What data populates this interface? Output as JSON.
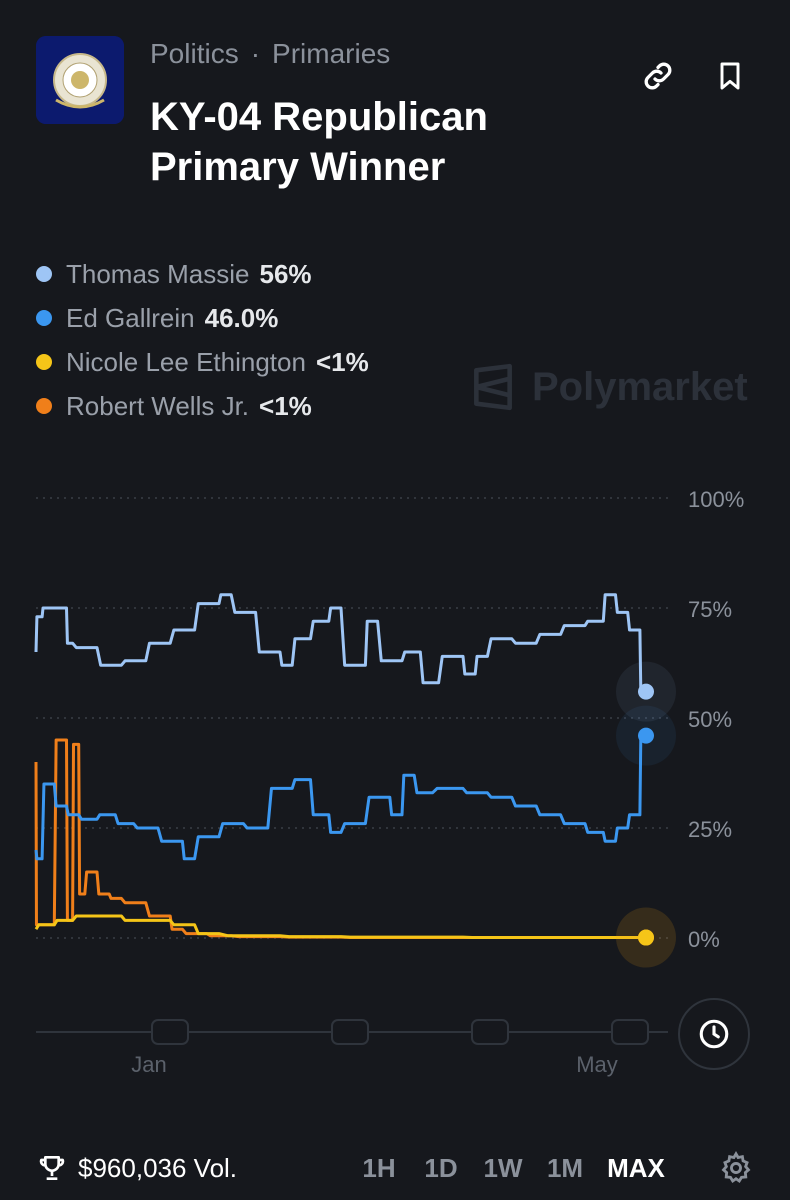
{
  "header": {
    "breadcrumbs": [
      "Politics",
      "Primaries"
    ],
    "separator": "·",
    "title": "KY-04 Republican Primary Winner"
  },
  "legend": [
    {
      "name": "Thomas Massie",
      "value": "56%",
      "color": "#9ec5f5"
    },
    {
      "name": "Ed Gallrein",
      "value": "46.0%",
      "color": "#3b97f0"
    },
    {
      "name": "Nicole Lee Ethington",
      "value": "<1%",
      "color": "#f5c518"
    },
    {
      "name": "Robert Wells Jr.",
      "value": "<1%",
      "color": "#f07f1a"
    }
  ],
  "watermark": "Polymarket",
  "chart_data": {
    "type": "line",
    "ylim": [
      0,
      100
    ],
    "y_ticks": [
      "100%",
      "75%",
      "50%",
      "25%",
      "0%"
    ],
    "x_ticks": [
      "Jan",
      "May"
    ],
    "grid": true,
    "series": [
      {
        "name": "Thomas Massie",
        "color": "#9ec5f5",
        "t": [
          0,
          0.01,
          0.02,
          0.05,
          0.06,
          0.1,
          0.14,
          0.18,
          0.22,
          0.26,
          0.3,
          0.32,
          0.36,
          0.4,
          0.42,
          0.45,
          0.48,
          0.5,
          0.54,
          0.56,
          0.6,
          0.63,
          0.66,
          0.7,
          0.72,
          0.74,
          0.78,
          0.82,
          0.86,
          0.9,
          0.93,
          0.95,
          0.97,
          0.99,
          1.0
        ],
        "values": [
          65,
          73,
          75,
          75,
          67,
          66,
          62,
          63,
          67,
          70,
          76,
          78,
          74,
          65,
          62,
          68,
          72,
          75,
          62,
          72,
          63,
          65,
          58,
          64,
          60,
          64,
          68,
          67,
          69,
          71,
          72,
          78,
          74,
          70,
          56
        ]
      },
      {
        "name": "Ed Gallrein",
        "color": "#3b97f0",
        "t": [
          0,
          0.01,
          0.03,
          0.05,
          0.07,
          0.1,
          0.13,
          0.16,
          0.2,
          0.24,
          0.26,
          0.3,
          0.34,
          0.38,
          0.42,
          0.45,
          0.48,
          0.5,
          0.54,
          0.58,
          0.6,
          0.62,
          0.65,
          0.7,
          0.74,
          0.78,
          0.82,
          0.86,
          0.9,
          0.93,
          0.95,
          0.97,
          0.99,
          1.0
        ],
        "values": [
          20,
          18,
          35,
          30,
          28,
          27,
          28,
          26,
          25,
          22,
          18,
          23,
          26,
          25,
          34,
          36,
          28,
          24,
          26,
          32,
          28,
          37,
          33,
          34,
          33,
          32,
          30,
          28,
          26,
          24,
          22,
          25,
          28,
          46
        ]
      },
      {
        "name": "Nicole Lee Ethington",
        "color": "#f5c518",
        "t": [
          0,
          0.03,
          0.06,
          0.1,
          0.14,
          0.18,
          0.22,
          0.26,
          0.3,
          0.4,
          0.5,
          0.6,
          0.7,
          0.8,
          0.9,
          1.0
        ],
        "values": [
          2,
          3,
          4,
          5,
          5,
          4,
          4,
          3,
          1,
          0.5,
          0.3,
          0.2,
          0.2,
          0.1,
          0.1,
          0.1
        ]
      },
      {
        "name": "Robert Wells Jr.",
        "color": "#f07f1a",
        "t": [
          0,
          0.005,
          0.03,
          0.05,
          0.06,
          0.07,
          0.08,
          0.1,
          0.12,
          0.14,
          0.18,
          0.22,
          0.24,
          0.28,
          0.32,
          0.4,
          0.5,
          0.6,
          0.8,
          1.0
        ],
        "values": [
          40,
          3,
          3,
          45,
          4,
          44,
          10,
          15,
          10,
          9,
          8,
          5,
          2,
          1,
          0.5,
          0.3,
          0.2,
          0.1,
          0.1,
          0.1
        ]
      }
    ]
  },
  "footer": {
    "volume": "$960,036 Vol.",
    "ranges": [
      "1H",
      "1D",
      "1W",
      "1M",
      "MAX"
    ],
    "active_range": "MAX"
  }
}
